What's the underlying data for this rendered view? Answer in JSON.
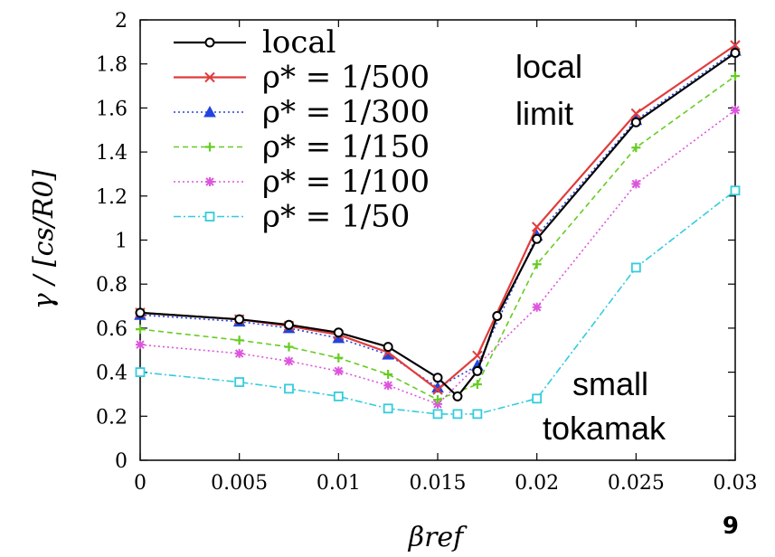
{
  "chart_data": {
    "type": "line",
    "xlabel": "βref",
    "ylabel": "γ / [cs/R0]",
    "xlim": [
      0,
      0.03
    ],
    "ylim": [
      0,
      2
    ],
    "xticks": [
      "0",
      "0.005",
      "0.01",
      "0.015",
      "0.02",
      "0.025",
      "0.03"
    ],
    "yticks": [
      "0",
      "0.2",
      "0.4",
      "0.6",
      "0.8",
      "1",
      "1.2",
      "1.4",
      "1.6",
      "1.8",
      "2"
    ],
    "legend_position": "top-left",
    "grid": false,
    "series": [
      {
        "name": "local",
        "color": "#000000",
        "marker": "circle",
        "line": "solid",
        "points": [
          [
            0,
            0.67
          ],
          [
            0.005,
            0.64
          ],
          [
            0.0075,
            0.615
          ],
          [
            0.01,
            0.58
          ],
          [
            0.0125,
            0.515
          ],
          [
            0.015,
            0.375
          ],
          [
            0.016,
            0.29
          ],
          [
            0.017,
            0.405
          ],
          [
            0.018,
            0.655
          ],
          [
            0.02,
            1.005
          ],
          [
            0.025,
            1.535
          ],
          [
            0.03,
            1.85
          ]
        ]
      },
      {
        "name": "ρ* = 1/500",
        "color": "#e03c3c",
        "marker": "x",
        "line": "solid",
        "points": [
          [
            0,
            0.67
          ],
          [
            0.005,
            0.64
          ],
          [
            0.0075,
            0.61
          ],
          [
            0.01,
            0.57
          ],
          [
            0.0125,
            0.49
          ],
          [
            0.015,
            0.32
          ],
          [
            0.017,
            0.475
          ],
          [
            0.02,
            1.06
          ],
          [
            0.025,
            1.575
          ],
          [
            0.03,
            1.885
          ]
        ]
      },
      {
        "name": "ρ* = 1/300",
        "color": "#2244dd",
        "marker": "triangle",
        "line": "dotted",
        "points": [
          [
            0,
            0.66
          ],
          [
            0.005,
            0.63
          ],
          [
            0.0075,
            0.6
          ],
          [
            0.01,
            0.555
          ],
          [
            0.0125,
            0.48
          ],
          [
            0.015,
            0.33
          ],
          [
            0.017,
            0.43
          ],
          [
            0.02,
            1.02
          ],
          [
            0.025,
            1.545
          ],
          [
            0.03,
            1.86
          ]
        ]
      },
      {
        "name": "ρ* = 1/150",
        "color": "#66cc22",
        "marker": "plus",
        "line": "dashed",
        "points": [
          [
            0,
            0.595
          ],
          [
            0.005,
            0.545
          ],
          [
            0.0075,
            0.515
          ],
          [
            0.01,
            0.465
          ],
          [
            0.0125,
            0.39
          ],
          [
            0.015,
            0.275
          ],
          [
            0.017,
            0.345
          ],
          [
            0.02,
            0.89
          ],
          [
            0.025,
            1.42
          ],
          [
            0.03,
            1.745
          ]
        ]
      },
      {
        "name": "ρ* = 1/100",
        "color": "#dd55dd",
        "marker": "asterisk",
        "line": "dotted",
        "points": [
          [
            0,
            0.525
          ],
          [
            0.005,
            0.485
          ],
          [
            0.0075,
            0.45
          ],
          [
            0.01,
            0.405
          ],
          [
            0.0125,
            0.34
          ],
          [
            0.015,
            0.255
          ],
          [
            0.02,
            0.695
          ],
          [
            0.025,
            1.255
          ],
          [
            0.03,
            1.59
          ]
        ]
      },
      {
        "name": "ρ* = 1/50",
        "color": "#33ccdd",
        "marker": "square",
        "line": "dashdot",
        "points": [
          [
            0,
            0.4
          ],
          [
            0.005,
            0.355
          ],
          [
            0.0075,
            0.325
          ],
          [
            0.01,
            0.29
          ],
          [
            0.0125,
            0.235
          ],
          [
            0.015,
            0.21
          ],
          [
            0.016,
            0.21
          ],
          [
            0.017,
            0.21
          ],
          [
            0.02,
            0.28
          ],
          [
            0.025,
            0.875
          ],
          [
            0.03,
            1.225
          ]
        ]
      }
    ],
    "annotations": [
      {
        "lines": [
          "local",
          "limit"
        ],
        "color": "#000000",
        "position": "upper-middle-right"
      },
      {
        "lines": [
          "small",
          "tokamak"
        ],
        "color": "#33dde0",
        "position": "lower-right"
      }
    ]
  },
  "page_number": "9"
}
